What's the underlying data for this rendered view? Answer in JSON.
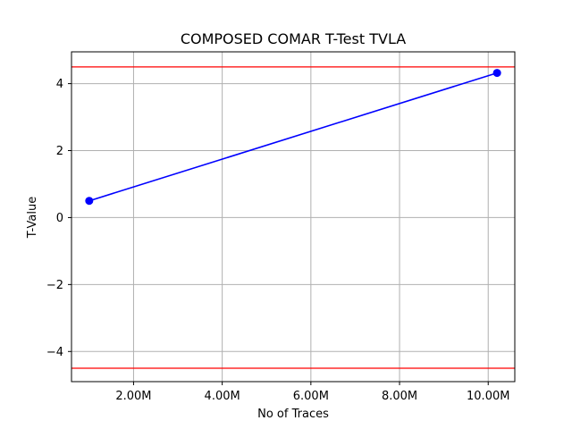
{
  "chart_data": {
    "type": "line",
    "title": "COMPOSED COMAR T-Test TVLA",
    "xlabel": "No of Traces",
    "ylabel": "T-Value",
    "xlim": [
      600000,
      10600000
    ],
    "ylim": [
      -4.9,
      4.95
    ],
    "x_ticks": [
      {
        "value": 2000000,
        "label": "2.00M"
      },
      {
        "value": 4000000,
        "label": "4.00M"
      },
      {
        "value": 6000000,
        "label": "6.00M"
      },
      {
        "value": 8000000,
        "label": "8.00M"
      },
      {
        "value": 10000000,
        "label": "10.00M"
      }
    ],
    "y_ticks": [
      {
        "value": -4,
        "label": "−4"
      },
      {
        "value": -2,
        "label": "−2"
      },
      {
        "value": 0,
        "label": "0"
      },
      {
        "value": 2,
        "label": "2"
      },
      {
        "value": 4,
        "label": "4"
      }
    ],
    "grid": true,
    "series": [
      {
        "x": [
          1000000,
          10200000
        ],
        "y": [
          0.5,
          4.32
        ],
        "color": "#0000ff",
        "marker": "circle"
      }
    ],
    "threshold_lines": [
      {
        "y": 4.5,
        "color": "#ff0000"
      },
      {
        "y": -4.5,
        "color": "#ff0000"
      }
    ]
  }
}
